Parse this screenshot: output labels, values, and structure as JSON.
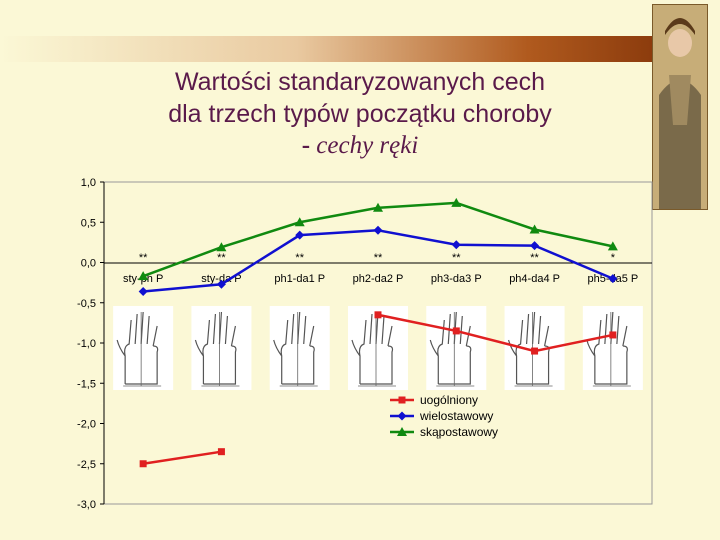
{
  "title": {
    "line1": "Wartości standaryzowanych cech",
    "line2": "dla trzech typów początku choroby",
    "line3_dash": "-",
    "line3_text": " cechy ręki"
  },
  "colors": {
    "uogolniony": "#e02020",
    "wielostawowy": "#1010d0",
    "skapostawowy": "#108a10",
    "title": "#5a1a4a",
    "background": "#fbf8d6"
  },
  "chart_data": {
    "type": "line",
    "categories": [
      "sty-ph P",
      "sty-da P",
      "ph1-da1 P",
      "ph2-da2 P",
      "ph3-da3 P",
      "ph4-da4 P",
      "ph5-da5 P"
    ],
    "ylim": [
      -3.0,
      1.0
    ],
    "yticks": [
      "1,0",
      "0,5",
      "0,0",
      "-0,5",
      "-1,0",
      "-1,5",
      "-2,0",
      "-2,5",
      "-3,0"
    ],
    "ytick_values": [
      1.0,
      0.5,
      0.0,
      -0.5,
      -1.0,
      -1.5,
      -2.0,
      -2.5,
      -3.0
    ],
    "significance": [
      "**",
      "**",
      "**",
      "**",
      "**",
      "**",
      "*"
    ],
    "series": [
      {
        "name": "uogólniony",
        "values": [
          -2.5,
          -2.35,
          null,
          -0.65,
          -0.85,
          -1.1,
          -0.9
        ],
        "marker": "square"
      },
      {
        "name": "wielostawowy",
        "values": [
          -0.36,
          -0.27,
          0.34,
          0.4,
          0.22,
          0.21,
          -0.2
        ],
        "marker": "diamond"
      },
      {
        "name": "skąpostawowy",
        "values": [
          -0.17,
          0.19,
          0.5,
          0.68,
          0.74,
          0.41,
          0.2
        ],
        "marker": "triangle"
      }
    ],
    "legend_position": "bottom-right",
    "grid": false
  },
  "hand_icons": [
    "hand-icon",
    "hand-icon",
    "hand-icon",
    "hand-icon",
    "hand-icon",
    "hand-icon",
    "hand-icon"
  ]
}
